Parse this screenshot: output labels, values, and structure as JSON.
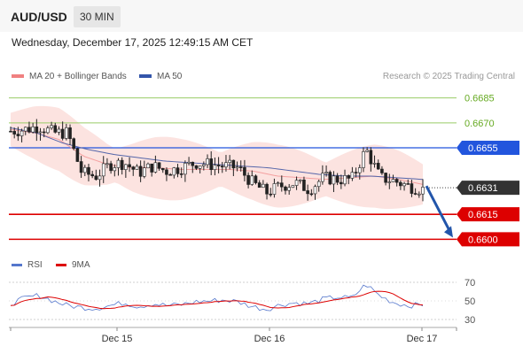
{
  "header": {
    "symbol": "AUD/USD",
    "timeframe": "30 MIN"
  },
  "datetime": "Wednesday, December 17, 2025 12:49:15 AM CET",
  "legend": {
    "bollinger": {
      "label": "MA 20 + Bollinger Bands",
      "color": "#f08080"
    },
    "ma50": {
      "label": "MA 50",
      "color": "#3355aa"
    },
    "rsi": {
      "label": "RSI",
      "color": "#5577cc"
    },
    "ma9": {
      "label": "9MA",
      "color": "#dd0000"
    }
  },
  "credit": "Research © 2025 Trading Central",
  "chart_data": {
    "type": "candlestick",
    "price_range": [
      0.6597,
      0.6688
    ],
    "levels": [
      {
        "value": 0.6685,
        "label": "0.6685",
        "style": "green-line"
      },
      {
        "value": 0.667,
        "label": "0.6670",
        "style": "green-line"
      },
      {
        "value": 0.6655,
        "label": "0.6655",
        "style": "blue-box"
      },
      {
        "value": 0.6631,
        "label": "0.6631",
        "style": "current-price"
      },
      {
        "value": 0.6615,
        "label": "0.6615",
        "style": "red-box"
      },
      {
        "value": 0.66,
        "label": "0.6600",
        "style": "red-box"
      }
    ],
    "x_ticks": [
      "Dec 15",
      "Dec 16",
      "Dec 17"
    ],
    "rsi_ticks": [
      70,
      50,
      30
    ],
    "candle_count": 112,
    "price_anchors": [
      0.6665,
      0.6666,
      0.6668,
      0.6664,
      0.6664,
      0.664,
      0.6638,
      0.6645,
      0.6646,
      0.664,
      0.6644,
      0.6641,
      0.6643,
      0.6646,
      0.6645,
      0.6644,
      0.6643,
      0.6634,
      0.6628,
      0.6632,
      0.6634,
      0.663,
      0.6637,
      0.6636,
      0.6636,
      0.6654,
      0.6637,
      0.6635,
      0.6632,
      0.663
    ],
    "rsi_anchors": [
      47,
      53,
      56,
      50,
      45,
      43,
      42,
      45,
      48,
      44,
      47,
      45,
      46,
      49,
      50,
      51,
      49,
      44,
      41,
      46,
      48,
      47,
      52,
      54,
      53,
      68,
      55,
      48,
      45,
      46
    ],
    "ma20_anchors": [
      0.6666,
      0.6664,
      0.666,
      0.665,
      0.6645,
      0.6643,
      0.6643,
      0.6642,
      0.6642,
      0.6642,
      0.6641,
      0.6638,
      0.6637,
      0.6636,
      0.6637,
      0.6638,
      0.6636,
      0.6633
    ],
    "ma50_anchors": [
      0.6667,
      0.6664,
      0.6658,
      0.6654,
      0.6651,
      0.6649,
      0.6647,
      0.6646,
      0.6645,
      0.6644,
      0.6643,
      0.6641,
      0.6639,
      0.6638,
      0.6638,
      0.6637,
      0.6636
    ],
    "forecast_arrow": {
      "from": 0.6632,
      "to": 0.66
    }
  }
}
